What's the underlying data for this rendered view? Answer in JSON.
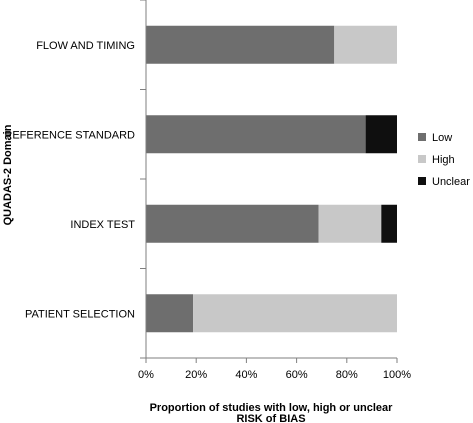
{
  "chart_data": {
    "type": "bar",
    "stacked": true,
    "orientation": "horizontal",
    "categories": [
      "FLOW AND TIMING",
      "REFERENCE STANDARD",
      "INDEX TEST",
      "PATIENT SELECTION"
    ],
    "series": [
      {
        "name": "Low",
        "color": "#6e6e6e",
        "values": [
          75,
          87.5,
          68.75,
          18.75
        ]
      },
      {
        "name": "High",
        "color": "#c8c8c8",
        "values": [
          25,
          0,
          25,
          81.25
        ]
      },
      {
        "name": "Unclear",
        "color": "#0f0f0f",
        "values": [
          0,
          12.5,
          6.25,
          0
        ]
      }
    ],
    "xlim": [
      0,
      100
    ],
    "xticks": [
      "0%",
      "20%",
      "40%",
      "60%",
      "80%",
      "100%"
    ],
    "xlabel_line1": "Proportion of studies with low, high or unclear",
    "xlabel_line2": "RISK of BIAS",
    "ylabel": "QUADAS-2 Domain",
    "legend_position": "right",
    "grid": false
  }
}
